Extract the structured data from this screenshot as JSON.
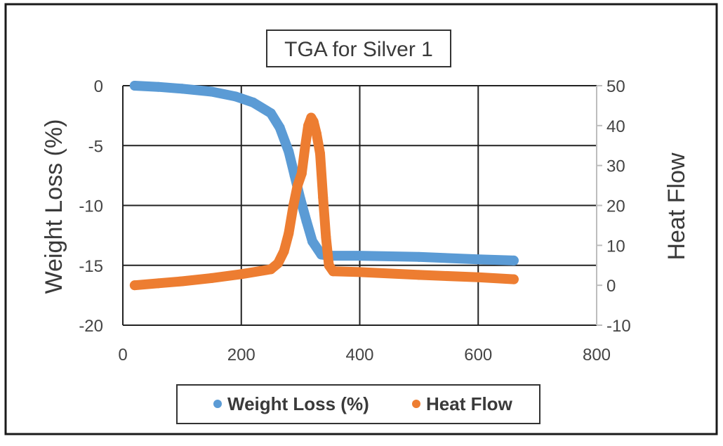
{
  "chart_data": {
    "type": "scatter",
    "title": "TGA for Silver 1",
    "xlabel": "",
    "ylabel": "Weight Loss (%)",
    "y2label": "Heat Flow",
    "xlim": [
      0,
      800
    ],
    "ylim": [
      -20,
      0
    ],
    "y2lim": [
      -10,
      50
    ],
    "xticks": [
      "0",
      "200",
      "400",
      "600",
      "800"
    ],
    "yticks": [
      "0",
      "-5",
      "-10",
      "-15",
      "-20"
    ],
    "y2ticks": [
      "50",
      "40",
      "30",
      "20",
      "10",
      "0",
      "-10"
    ],
    "grid": true,
    "legend_position": "bottom",
    "series": [
      {
        "name": "Weight Loss (%)",
        "axis": "left",
        "color": "#5b9bd5",
        "x": [
          20,
          60,
          100,
          150,
          190,
          220,
          250,
          265,
          280,
          290,
          300,
          310,
          320,
          335,
          350,
          400,
          500,
          600,
          660
        ],
        "y": [
          0,
          -0.1,
          -0.25,
          -0.5,
          -0.9,
          -1.4,
          -2.3,
          -3.5,
          -5.5,
          -7.5,
          -9.5,
          -11.3,
          -13,
          -14.1,
          -14.2,
          -14.2,
          -14.3,
          -14.5,
          -14.6
        ]
      },
      {
        "name": "Heat Flow",
        "axis": "right",
        "color": "#ed7d31",
        "x": [
          20,
          60,
          100,
          150,
          200,
          250,
          262,
          272,
          280,
          288,
          295,
          302,
          308,
          313,
          318,
          322,
          327,
          333,
          338,
          343,
          348,
          355,
          400,
          500,
          600,
          660
        ],
        "y": [
          0,
          0.5,
          1,
          1.8,
          2.8,
          4,
          5.5,
          8.5,
          13,
          20,
          25,
          28,
          35,
          40,
          42,
          41,
          38,
          33,
          22,
          12,
          5,
          3.5,
          3.3,
          2.6,
          2,
          1.5
        ]
      }
    ]
  }
}
